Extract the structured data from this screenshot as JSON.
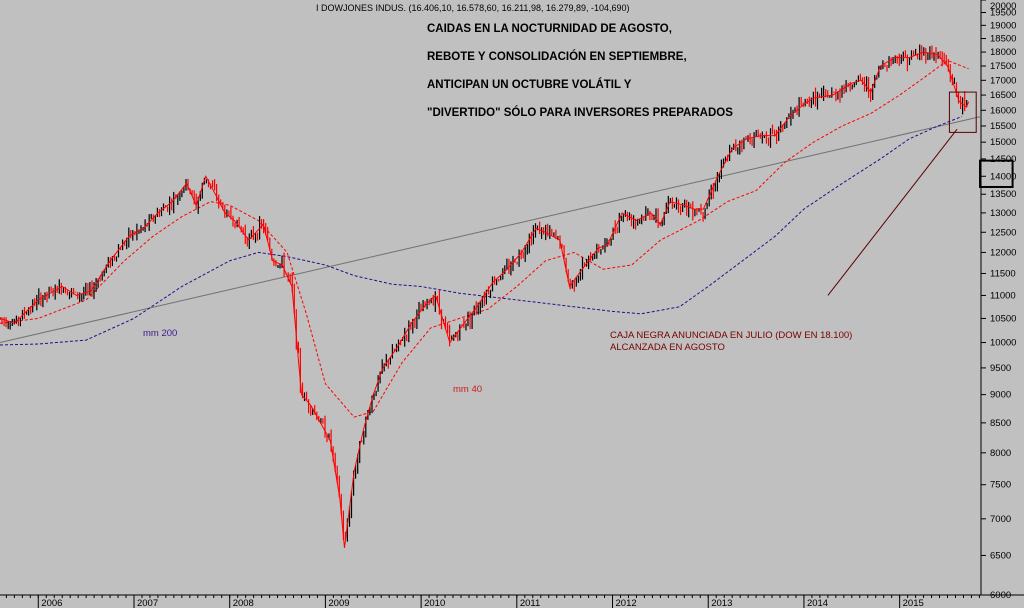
{
  "header_text": "I DOWJONES INDUS. (16.406,10, 16.578,60, 16.211,98, 16.279,89, -104,690)",
  "headline_lines": [
    "CAIDAS EN LA NOCTURNIDAD DE AGOSTO,",
    "REBOTE Y CONSOLIDACIÓN EN SEPTIEMBRE,",
    "ANTICIPAN UN OCTUBRE VOLÁTIL Y",
    "\"DIVERTIDO\" SÓLO PARA INVERSORES PREPARADOS"
  ],
  "annotations": {
    "mm200": "mm 200",
    "mm40": "mm 40",
    "black_box_line1": "CAJA NEGRA ANUNCIADA EN JULIO (DOW EN 18.100)",
    "black_box_line2": "ALCANZADA EN AGOSTO"
  },
  "colors": {
    "background": "#c0c0c0",
    "price": "#ff0000",
    "price_up": "#000000",
    "mm40": "#ff0000",
    "mm200": "#2a0a8c",
    "trendline": "#707070",
    "annotation_text": "#7a0000",
    "mm200_label": "#3a1a8c"
  },
  "chart_data": {
    "type": "line",
    "title": "I DOWJONES INDUS. (16.406,10, 16.578,60, 16.211,98, 16.279,89, -104,690)",
    "x_axis": {
      "tick_labels": [
        "2006",
        "2007",
        "2008",
        "2009",
        "2010",
        "2011",
        "2012",
        "2013",
        "2014",
        "2015"
      ],
      "range": [
        2005.6,
        2015.85
      ]
    },
    "y_axis": {
      "position": "right",
      "tick_labels": [
        "6000",
        "6500",
        "7000",
        "7500",
        "8000",
        "8500",
        "9000",
        "9500",
        "10000",
        "10500",
        "11000",
        "11500",
        "12000",
        "12500",
        "13000",
        "13500",
        "14000",
        "14500",
        "15000",
        "15500",
        "16000",
        "16500",
        "17000",
        "17500",
        "18000",
        "18500",
        "19000",
        "19500",
        "20000"
      ],
      "range": [
        6000,
        20000
      ],
      "scale": "log"
    },
    "grid": false,
    "series": [
      {
        "name": "price",
        "x": [
          2005.6,
          2005.75,
          2005.9,
          2006.0,
          2006.25,
          2006.4,
          2006.55,
          2006.75,
          2006.95,
          2007.1,
          2007.25,
          2007.4,
          2007.55,
          2007.65,
          2007.75,
          2007.85,
          2007.95,
          2008.05,
          2008.2,
          2008.35,
          2008.45,
          2008.55,
          2008.65,
          2008.75,
          2008.85,
          2008.95,
          2009.05,
          2009.15,
          2009.2,
          2009.3,
          2009.4,
          2009.5,
          2009.6,
          2009.75,
          2009.9,
          2010.05,
          2010.15,
          2010.3,
          2010.45,
          2010.6,
          2010.75,
          2010.9,
          2011.05,
          2011.2,
          2011.3,
          2011.45,
          2011.55,
          2011.65,
          2011.75,
          2011.85,
          2011.95,
          2012.1,
          2012.25,
          2012.4,
          2012.5,
          2012.6,
          2012.75,
          2012.85,
          2012.95,
          2013.1,
          2013.25,
          2013.4,
          2013.55,
          2013.7,
          2013.85,
          2014.0,
          2014.1,
          2014.3,
          2014.5,
          2014.6,
          2014.7,
          2014.8,
          2014.95,
          2015.1,
          2015.25,
          2015.4,
          2015.5,
          2015.55,
          2015.62,
          2015.7,
          2015.72
        ],
        "values": [
          10500,
          10400,
          10700,
          10900,
          11200,
          11000,
          11100,
          11800,
          12400,
          12600,
          13000,
          13300,
          13800,
          13200,
          14000,
          13500,
          13000,
          12800,
          12300,
          12700,
          11800,
          11700,
          11200,
          9000,
          8800,
          8500,
          8200,
          7300,
          6600,
          7700,
          8400,
          9000,
          9500,
          9900,
          10400,
          10800,
          11000,
          10000,
          10400,
          10800,
          11300,
          11600,
          12000,
          12600,
          12500,
          12300,
          11200,
          11500,
          11800,
          12100,
          12200,
          13000,
          12800,
          13000,
          12700,
          13300,
          13200,
          13100,
          13100,
          14000,
          14800,
          15100,
          15200,
          15200,
          15800,
          16200,
          16400,
          16500,
          16900,
          17000,
          16600,
          17500,
          17800,
          17800,
          18000,
          17900,
          17500,
          17000,
          16300,
          16100,
          16280
        ]
      },
      {
        "name": "mm 40",
        "x": [
          2005.6,
          2006.0,
          2006.5,
          2006.9,
          2007.2,
          2007.5,
          2007.8,
          2008.0,
          2008.3,
          2008.6,
          2008.8,
          2009.0,
          2009.3,
          2009.5,
          2009.8,
          2010.1,
          2010.4,
          2010.7,
          2011.0,
          2011.3,
          2011.6,
          2011.9,
          2012.2,
          2012.5,
          2012.9,
          2013.2,
          2013.5,
          2013.8,
          2014.1,
          2014.4,
          2014.7,
          2015.0,
          2015.3,
          2015.5,
          2015.72
        ],
        "values": [
          10400,
          10500,
          10900,
          11800,
          12400,
          12900,
          13300,
          13200,
          12800,
          12000,
          10600,
          9200,
          8600,
          8700,
          9600,
          10300,
          10500,
          10700,
          11200,
          11800,
          12000,
          11600,
          11700,
          12300,
          12800,
          13300,
          13600,
          14400,
          15000,
          15500,
          15900,
          16500,
          17200,
          17700,
          17400
        ]
      },
      {
        "name": "mm 200",
        "x": [
          2005.6,
          2006.0,
          2006.5,
          2007.0,
          2007.5,
          2008.0,
          2008.3,
          2008.6,
          2009.0,
          2009.3,
          2009.7,
          2010.0,
          2010.4,
          2010.8,
          2011.2,
          2011.6,
          2012.0,
          2012.3,
          2012.7,
          2013.0,
          2013.3,
          2013.7,
          2014.0,
          2014.4,
          2014.8,
          2015.1,
          2015.4,
          2015.65
        ],
        "values": [
          9950,
          9970,
          10050,
          10500,
          11200,
          11800,
          12000,
          11900,
          11700,
          11450,
          11250,
          11200,
          11050,
          10950,
          10850,
          10750,
          10650,
          10600,
          10750,
          11200,
          11700,
          12400,
          13100,
          13800,
          14500,
          15100,
          15500,
          15800
        ]
      },
      {
        "name": "trendline",
        "x": [
          2005.6,
          2015.85
        ],
        "values": [
          10000,
          15800
        ]
      }
    ]
  }
}
